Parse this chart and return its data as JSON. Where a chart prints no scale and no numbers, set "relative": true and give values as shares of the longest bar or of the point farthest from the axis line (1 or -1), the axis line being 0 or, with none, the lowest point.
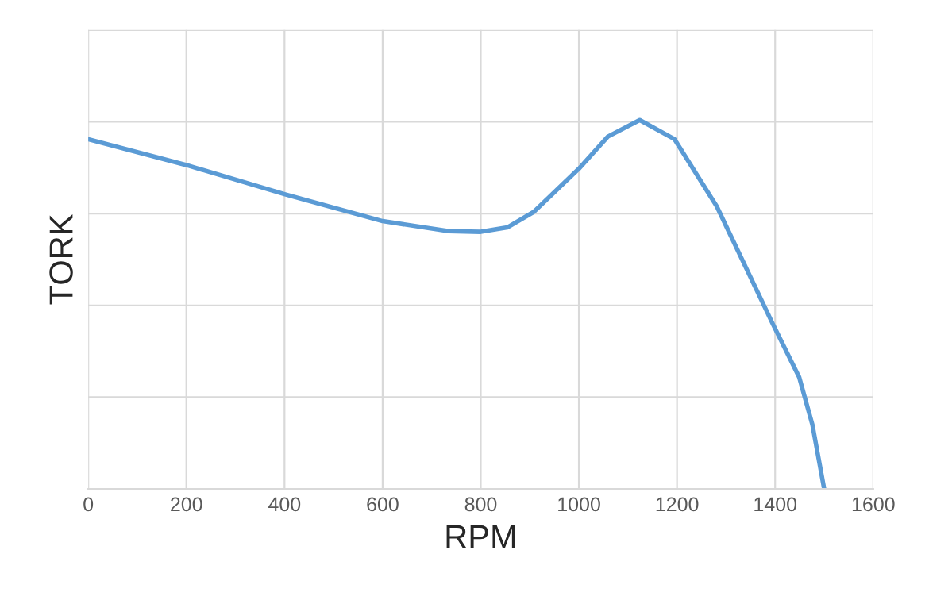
{
  "chart_data": {
    "type": "line",
    "xlabel": "RPM",
    "ylabel": "TORK",
    "relative": true,
    "x": [
      0,
      200,
      400,
      600,
      735,
      800,
      854,
      908,
      1000,
      1059,
      1124,
      1195,
      1281,
      1395,
      1449,
      1476,
      1500
    ],
    "series": [
      {
        "color": "#5b9bd5",
        "values": [
          0.948,
          0.878,
          0.799,
          0.726,
          0.699,
          0.697,
          0.709,
          0.751,
          0.868,
          0.955,
          1,
          0.948,
          0.766,
          0.448,
          0.303,
          0.174,
          0
        ]
      }
    ],
    "xlim": [
      0,
      1600
    ],
    "xticks": [
      0,
      200,
      400,
      600,
      800,
      1000,
      1200,
      1400,
      1600
    ],
    "grid": true,
    "marker": "none",
    "line_style": "solid",
    "legend": false
  }
}
